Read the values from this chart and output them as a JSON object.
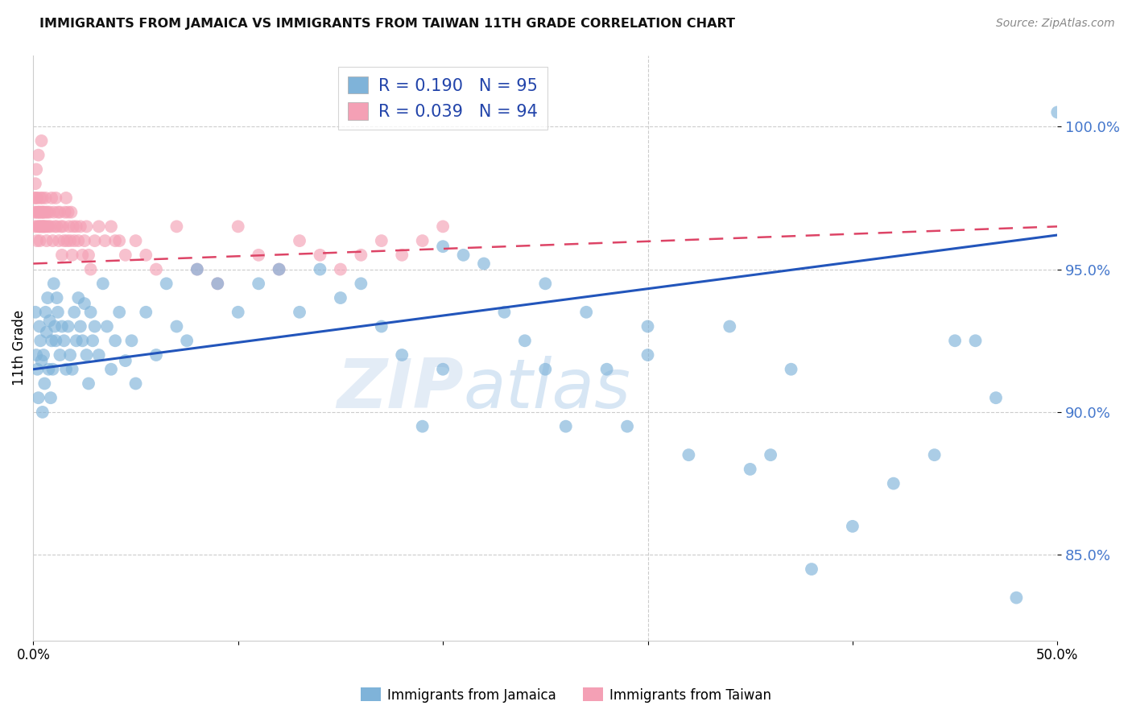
{
  "title": "IMMIGRANTS FROM JAMAICA VS IMMIGRANTS FROM TAIWAN 11TH GRADE CORRELATION CHART",
  "source": "Source: ZipAtlas.com",
  "ylabel": "11th Grade",
  "ytick_values": [
    85.0,
    90.0,
    95.0,
    100.0
  ],
  "xlim": [
    0.0,
    50.0
  ],
  "ylim": [
    82.0,
    102.5
  ],
  "legend_r1": "R = 0.190",
  "legend_n1": "N = 95",
  "legend_r2": "R = 0.039",
  "legend_n2": "N = 94",
  "color_jamaica": "#7fb3d9",
  "color_taiwan": "#f4a0b5",
  "line_color_jamaica": "#2255bb",
  "line_color_taiwan": "#dd4466",
  "watermark_zip": "ZIP",
  "watermark_atlas": "atlas",
  "jamaica_line_x0": 0.0,
  "jamaica_line_y0": 91.5,
  "jamaica_line_x1": 50.0,
  "jamaica_line_y1": 96.2,
  "taiwan_line_x0": 0.0,
  "taiwan_line_y0": 95.2,
  "taiwan_line_x1": 50.0,
  "taiwan_line_y1": 96.5,
  "jamaica_x": [
    0.1,
    0.15,
    0.2,
    0.25,
    0.3,
    0.35,
    0.4,
    0.45,
    0.5,
    0.55,
    0.6,
    0.65,
    0.7,
    0.75,
    0.8,
    0.85,
    0.9,
    0.95,
    1.0,
    1.05,
    1.1,
    1.15,
    1.2,
    1.3,
    1.4,
    1.5,
    1.6,
    1.7,
    1.8,
    1.9,
    2.0,
    2.1,
    2.2,
    2.3,
    2.4,
    2.5,
    2.6,
    2.7,
    2.8,
    2.9,
    3.0,
    3.2,
    3.4,
    3.6,
    3.8,
    4.0,
    4.2,
    4.5,
    4.8,
    5.0,
    5.5,
    6.0,
    6.5,
    7.0,
    7.5,
    8.0,
    9.0,
    10.0,
    11.0,
    12.0,
    13.0,
    14.0,
    15.0,
    16.0,
    17.0,
    18.0,
    19.0,
    20.0,
    21.0,
    22.0,
    23.0,
    24.0,
    25.0,
    26.0,
    27.0,
    28.0,
    29.0,
    30.0,
    32.0,
    34.0,
    36.0,
    38.0,
    40.0,
    42.0,
    44.0,
    46.0,
    48.0,
    50.0,
    20.0,
    25.0,
    30.0,
    35.0,
    37.0,
    45.0,
    47.0
  ],
  "jamaica_y": [
    93.5,
    92.0,
    91.5,
    90.5,
    93.0,
    92.5,
    91.8,
    90.0,
    92.0,
    91.0,
    93.5,
    92.8,
    94.0,
    91.5,
    93.2,
    90.5,
    92.5,
    91.5,
    94.5,
    93.0,
    92.5,
    94.0,
    93.5,
    92.0,
    93.0,
    92.5,
    91.5,
    93.0,
    92.0,
    91.5,
    93.5,
    92.5,
    94.0,
    93.0,
    92.5,
    93.8,
    92.0,
    91.0,
    93.5,
    92.5,
    93.0,
    92.0,
    94.5,
    93.0,
    91.5,
    92.5,
    93.5,
    91.8,
    92.5,
    91.0,
    93.5,
    92.0,
    94.5,
    93.0,
    92.5,
    95.0,
    94.5,
    93.5,
    94.5,
    95.0,
    93.5,
    95.0,
    94.0,
    94.5,
    93.0,
    92.0,
    89.5,
    91.5,
    95.5,
    95.2,
    93.5,
    92.5,
    91.5,
    89.5,
    93.5,
    91.5,
    89.5,
    93.0,
    88.5,
    93.0,
    88.5,
    84.5,
    86.0,
    87.5,
    88.5,
    92.5,
    83.5,
    100.5,
    95.8,
    94.5,
    92.0,
    88.0,
    91.5,
    92.5,
    90.5
  ],
  "taiwan_x": [
    0.05,
    0.08,
    0.1,
    0.12,
    0.15,
    0.18,
    0.2,
    0.22,
    0.25,
    0.28,
    0.3,
    0.32,
    0.35,
    0.38,
    0.4,
    0.42,
    0.45,
    0.48,
    0.5,
    0.55,
    0.6,
    0.65,
    0.7,
    0.75,
    0.8,
    0.85,
    0.9,
    0.95,
    1.0,
    1.05,
    1.1,
    1.15,
    1.2,
    1.25,
    1.3,
    1.35,
    1.4,
    1.45,
    1.5,
    1.55,
    1.6,
    1.65,
    1.7,
    1.75,
    1.8,
    1.85,
    1.9,
    1.95,
    2.0,
    2.1,
    2.2,
    2.3,
    2.4,
    2.5,
    2.6,
    2.7,
    2.8,
    3.0,
    3.2,
    3.5,
    3.8,
    4.0,
    4.5,
    5.0,
    5.5,
    6.0,
    7.0,
    8.0,
    9.0,
    10.0,
    11.0,
    12.0,
    13.0,
    14.0,
    15.0,
    16.0,
    17.0,
    18.0,
    19.0,
    20.0,
    0.07,
    0.13,
    0.17,
    0.23,
    0.27,
    0.33,
    0.37,
    0.43,
    0.47,
    0.53,
    0.58,
    0.63,
    0.68,
    4.2
  ],
  "taiwan_y": [
    97.5,
    96.5,
    98.0,
    97.0,
    98.5,
    96.0,
    97.5,
    97.0,
    99.0,
    96.5,
    97.0,
    96.0,
    97.5,
    96.5,
    99.5,
    97.0,
    97.5,
    96.5,
    97.0,
    96.5,
    97.5,
    96.0,
    97.0,
    96.5,
    97.0,
    96.5,
    97.5,
    96.0,
    97.0,
    96.5,
    97.5,
    96.5,
    97.0,
    96.0,
    97.0,
    96.5,
    95.5,
    96.5,
    96.0,
    97.0,
    97.5,
    96.0,
    97.0,
    96.5,
    96.0,
    97.0,
    95.5,
    96.5,
    96.0,
    96.5,
    96.0,
    96.5,
    95.5,
    96.0,
    96.5,
    95.5,
    95.0,
    96.0,
    96.5,
    96.0,
    96.5,
    96.0,
    95.5,
    96.0,
    95.5,
    95.0,
    96.5,
    95.0,
    94.5,
    96.5,
    95.5,
    95.0,
    96.0,
    95.5,
    95.0,
    95.5,
    96.0,
    95.5,
    96.0,
    96.5,
    97.0,
    97.5,
    96.5,
    97.0,
    96.5,
    97.0,
    96.5,
    97.0,
    96.5,
    97.0,
    96.5,
    97.0,
    96.5,
    96.0
  ]
}
